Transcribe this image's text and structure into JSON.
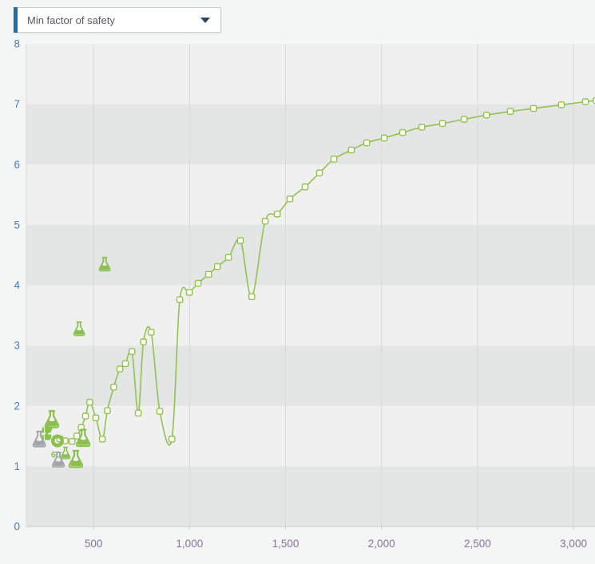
{
  "toolbar": {
    "dropdown": {
      "value": "Min factor of safety"
    }
  },
  "colors": {
    "accent_blue": "#1d6fa8",
    "dropdown_arrow": "#2b4560",
    "dropdown_text": "#555a60",
    "line_green": "#93c152",
    "marker_fill": "#fdfff5",
    "flask_green": "#8bbf4d",
    "flask_gray": "#a2a6aa",
    "y_axis_label": "#4a7cbf",
    "x_axis_label": "#8a719d",
    "band_light": "#f0f0f0",
    "band_dark": "#e4e5e5",
    "grid_line": "#d8d9d9",
    "axis_line": "#c9cbcc",
    "page_bg": "#f4f5f5"
  },
  "chart_data": {
    "type": "line",
    "title": "",
    "legend": "none",
    "grid": {
      "vertical_lines": true,
      "horizontal_bands": true
    },
    "x_range": [
      150,
      3112
    ],
    "y_range": [
      0,
      8
    ],
    "x_ticks": [
      {
        "value": 500,
        "label": "500"
      },
      {
        "value": 1000,
        "label": "1,000"
      },
      {
        "value": 1500,
        "label": "1,500"
      },
      {
        "value": 2000,
        "label": "2,000"
      },
      {
        "value": 2500,
        "label": "2,500"
      },
      {
        "value": 3000,
        "label": "3,000"
      }
    ],
    "y_ticks": [
      {
        "value": 0,
        "label": "0"
      },
      {
        "value": 1,
        "label": "1"
      },
      {
        "value": 2,
        "label": "2"
      },
      {
        "value": 3,
        "label": "3"
      },
      {
        "value": 4,
        "label": "4"
      },
      {
        "value": 5,
        "label": "5"
      },
      {
        "value": 6,
        "label": "6"
      },
      {
        "value": 7,
        "label": "7"
      },
      {
        "value": 8,
        "label": "8"
      }
    ],
    "series": [
      {
        "name": "Min factor of safety",
        "marker": "square",
        "points": [
          [
            325,
            1.45
          ],
          [
            352,
            1.42
          ],
          [
            388,
            1.41
          ],
          [
            413,
            1.5
          ],
          [
            436,
            1.64
          ],
          [
            458,
            1.83
          ],
          [
            480,
            2.06
          ],
          [
            512,
            1.8
          ],
          [
            546,
            1.45
          ],
          [
            572,
            1.92
          ],
          [
            605,
            2.31
          ],
          [
            637,
            2.61
          ],
          [
            666,
            2.7
          ],
          [
            700,
            2.9
          ],
          [
            733,
            1.88
          ],
          [
            760,
            3.06
          ],
          [
            800,
            3.22
          ],
          [
            845,
            1.91
          ],
          [
            908,
            1.45
          ],
          [
            949,
            3.76
          ],
          [
            999,
            3.88
          ],
          [
            1045,
            4.03
          ],
          [
            1099,
            4.18
          ],
          [
            1145,
            4.31
          ],
          [
            1203,
            4.46
          ],
          [
            1265,
            4.74
          ],
          [
            1324,
            3.81
          ],
          [
            1394,
            5.06
          ],
          [
            1457,
            5.18
          ],
          [
            1523,
            5.43
          ],
          [
            1602,
            5.63
          ],
          [
            1677,
            5.86
          ],
          [
            1752,
            6.09
          ],
          [
            1843,
            6.24
          ],
          [
            1923,
            6.36
          ],
          [
            2014,
            6.44
          ],
          [
            2110,
            6.53
          ],
          [
            2210,
            6.62
          ],
          [
            2318,
            6.68
          ],
          [
            2430,
            6.75
          ],
          [
            2547,
            6.82
          ],
          [
            2671,
            6.88
          ],
          [
            2792,
            6.93
          ],
          [
            2937,
            6.99
          ],
          [
            3062,
            7.04
          ],
          [
            3118,
            7.06
          ]
        ]
      }
    ],
    "annotations": [
      {
        "type": "flask",
        "color": "gray",
        "thumb": true,
        "thumb_side": "right",
        "x": 217,
        "y": 1.45,
        "size": 24
      },
      {
        "type": "donut",
        "color": "green",
        "x": 312,
        "y": 1.42,
        "size": 16
      },
      {
        "type": "flask",
        "color": "green",
        "x": 446,
        "y": 1.47,
        "size": 26
      },
      {
        "type": "flask",
        "color": "green",
        "thumb": true,
        "thumb_side": "left",
        "x": 283,
        "y": 1.78,
        "size": 26
      },
      {
        "type": "label",
        "text": "60",
        "color": "green",
        "x": 304,
        "y": 1.2,
        "size": 12
      },
      {
        "type": "flask",
        "color": "green",
        "x": 354,
        "y": 1.22,
        "size": 18
      },
      {
        "type": "flask",
        "color": "gray",
        "x": 317,
        "y": 1.11,
        "size": 23
      },
      {
        "type": "flask",
        "color": "green",
        "x": 408,
        "y": 1.12,
        "size": 26
      },
      {
        "type": "flask",
        "color": "green",
        "x": 425,
        "y": 3.28,
        "size": 21
      },
      {
        "type": "flask",
        "color": "green",
        "x": 558,
        "y": 4.35,
        "size": 21
      }
    ]
  }
}
